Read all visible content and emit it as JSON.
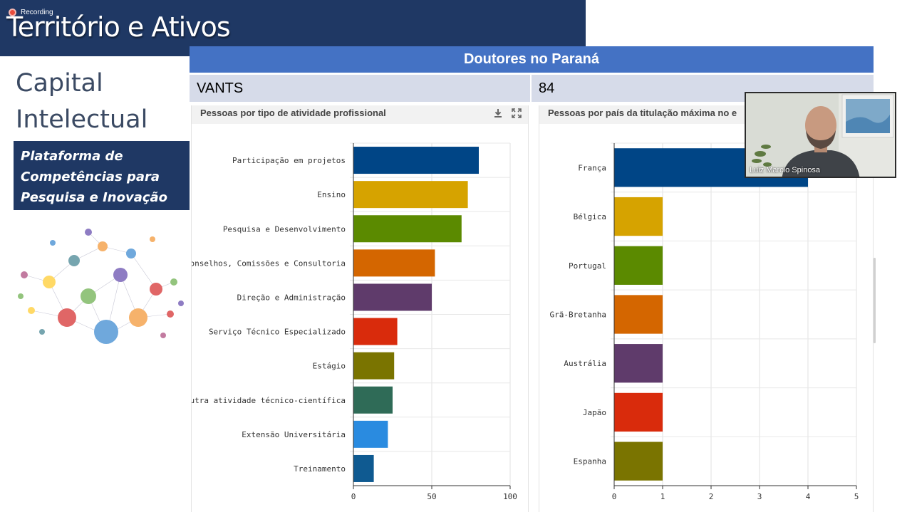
{
  "slide": {
    "title": "Território e Ativos",
    "recording_label": "Recording",
    "capital_line1": "Capital",
    "capital_line2": "Intelectual",
    "platform_text": "Plataforma de\nCompetências para\nPesquisa e Inovação"
  },
  "dashboard": {
    "header": "Doutores no Paraná",
    "cell_left": "VANTS",
    "cell_right": "84"
  },
  "video": {
    "participant_name": "Luiz Marcio Spinosa"
  },
  "colors": {
    "banner": "#1f3864",
    "header": "#4472c4",
    "cell": "#d6dbe9"
  },
  "icons": [
    "download-icon",
    "expand-icon",
    "recording-dot-icon"
  ],
  "chart_data": [
    {
      "type": "bar",
      "orientation": "horizontal",
      "title": "Pessoas por tipo de atividade profissional",
      "categories": [
        "Participação em projetos",
        "Ensino",
        "Pesquisa e Desenvolvimento",
        "Conselhos, Comissões e Consultoria",
        "Direção e Administração",
        "Serviço Técnico Especializado",
        "Estágio",
        "Outra atividade técnico-científica",
        "Extensão Universitária",
        "Treinamento"
      ],
      "values": [
        80,
        73,
        69,
        52,
        50,
        28,
        26,
        25,
        22,
        13
      ],
      "colors": [
        "#004586",
        "#d6a300",
        "#5b8a00",
        "#d46600",
        "#5f3b6b",
        "#d92b0c",
        "#7a7400",
        "#2f6b57",
        "#2a8be0",
        "#0f5a91"
      ],
      "xlim": [
        0,
        100
      ],
      "xticks": [
        "0",
        "50",
        "100"
      ],
      "grid": true
    },
    {
      "type": "bar",
      "orientation": "horizontal",
      "title": "Pessoas por país da titulação máxima no e",
      "categories": [
        "França",
        "Bélgica",
        "Portugal",
        "Grã-Bretanha",
        "Austrália",
        "Japão",
        "Espanha"
      ],
      "values": [
        4,
        1,
        1,
        1,
        1,
        1,
        1
      ],
      "colors": [
        "#004586",
        "#d6a300",
        "#5b8a00",
        "#d46600",
        "#5f3b6b",
        "#d92b0c",
        "#7a7400"
      ],
      "xlim": [
        0,
        5
      ],
      "xticks": [
        "0",
        "1",
        "2",
        "3",
        "4",
        "5"
      ],
      "grid": true
    }
  ]
}
